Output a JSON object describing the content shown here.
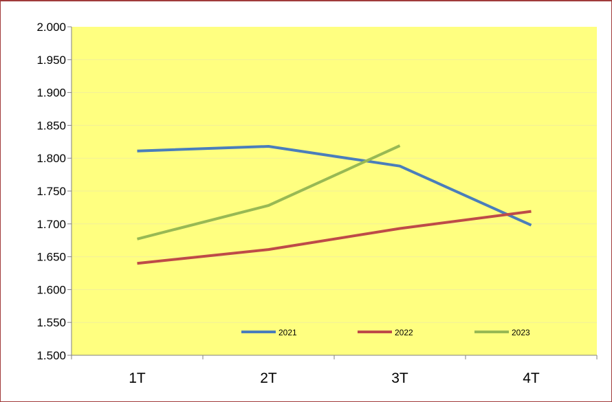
{
  "chart_data": {
    "type": "line",
    "title": "",
    "xlabel": "",
    "ylabel": "",
    "categories": [
      "1T",
      "2T",
      "3T",
      "4T"
    ],
    "ylim": [
      1.5,
      2.0
    ],
    "ytick_step": 0.05,
    "ytick_labels": [
      "2.000",
      "1.950",
      "1.900",
      "1.850",
      "1.800",
      "1.750",
      "1.700",
      "1.650",
      "1.600",
      "1.550",
      "1.500"
    ],
    "grid": true,
    "legend_position": "bottom-right inside plot",
    "plot_background": "#ffff80",
    "grid_color": "#f2ef9a",
    "series": [
      {
        "name": "2021",
        "color": "#4a7ebb",
        "values": [
          1.811,
          1.818,
          1.788,
          1.698
        ]
      },
      {
        "name": "2022",
        "color": "#be4b48",
        "values": [
          1.64,
          1.661,
          1.693,
          1.719
        ]
      },
      {
        "name": "2023",
        "color": "#98b954",
        "values": [
          1.677,
          1.728,
          1.819,
          null
        ]
      }
    ]
  }
}
